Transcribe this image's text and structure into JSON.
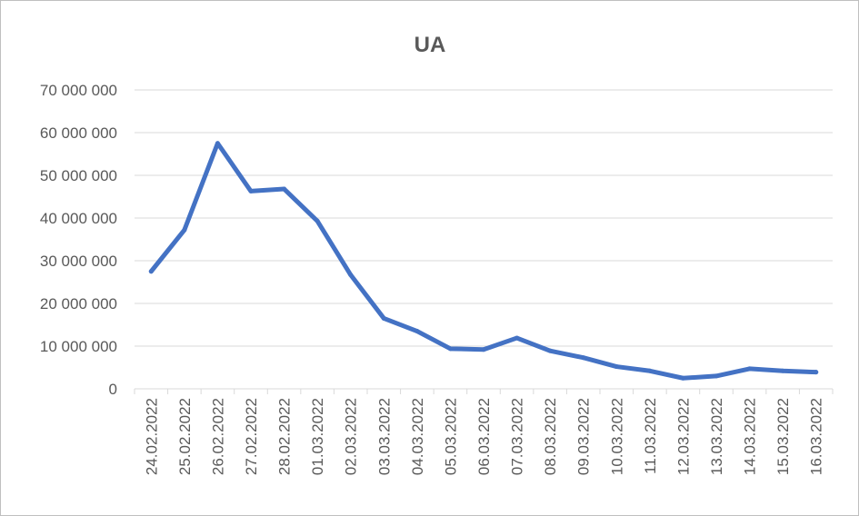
{
  "chart_data": {
    "type": "line",
    "title": "UA",
    "xlabel": "",
    "ylabel": "",
    "ylim": [
      0,
      70000000
    ],
    "yticks": [
      "0",
      "10 000 000",
      "20 000 000",
      "30 000 000",
      "40 000 000",
      "50 000 000",
      "60 000 000",
      "70 000 000"
    ],
    "grid": true,
    "legend": "none",
    "x": [
      "24.02.2022",
      "25.02.2022",
      "26.02.2022",
      "27.02.2022",
      "28.02.2022",
      "01.03.2022",
      "02.03.2022",
      "03.03.2022",
      "04.03.2022",
      "05.03.2022",
      "06.03.2022",
      "07.03.2022",
      "08.03.2022",
      "09.03.2022",
      "10.03.2022",
      "11.03.2022",
      "12.03.2022",
      "13.03.2022",
      "14.03.2022",
      "15.03.2022",
      "16.03.2022"
    ],
    "series": [
      {
        "color": "#4472c4",
        "values": [
          27500000,
          37200000,
          57500000,
          46300000,
          46800000,
          39300000,
          26700000,
          16500000,
          13500000,
          9400000,
          9200000,
          11900000,
          8900000,
          7300000,
          5200000,
          4200000,
          2500000,
          3000000,
          4700000,
          4200000,
          3900000
        ]
      }
    ]
  }
}
